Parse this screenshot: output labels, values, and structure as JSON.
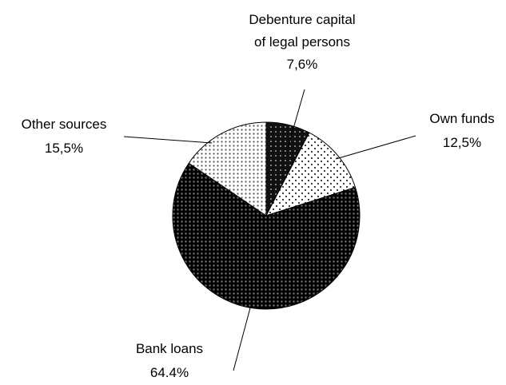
{
  "chart_data": {
    "type": "pie",
    "title": "",
    "slices": [
      {
        "label_lines": [
          "Debenture capital",
          "of legal persons"
        ],
        "value_text": "7,6%",
        "value": 7.6,
        "pattern": "dark-dotted"
      },
      {
        "label_lines": [
          "Own funds"
        ],
        "value_text": "12,5%",
        "value": 12.5,
        "pattern": "light-sparse-dots"
      },
      {
        "label_lines": [
          "Bank loans"
        ],
        "value_text": "64.4%",
        "value": 64.4,
        "pattern": "dense-dark-dots"
      },
      {
        "label_lines": [
          "Other sources"
        ],
        "value_text": "15,5%",
        "value": 15.5,
        "pattern": "light-dense-dots"
      }
    ],
    "start_angle": "12 o'clock",
    "direction": "clockwise",
    "colors": {
      "stroke": "#000000",
      "dark": "#111111",
      "light": "#ffffff"
    }
  }
}
